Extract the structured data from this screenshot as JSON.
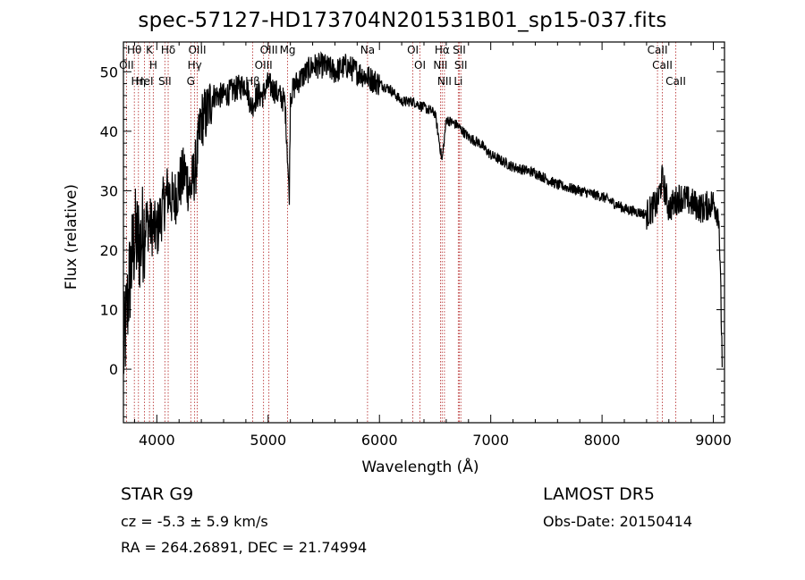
{
  "chart_data": {
    "type": "line",
    "title": "spec-57127-HD173704N201531B01_sp15-037.fits",
    "xlabel": "Wavelength (Å)",
    "ylabel": "Flux (relative)",
    "xlim": [
      3700,
      9100
    ],
    "ylim": [
      -9,
      55
    ],
    "xticks": [
      4000,
      5000,
      6000,
      7000,
      8000,
      9000
    ],
    "yticks": [
      0,
      10,
      20,
      30,
      40,
      50
    ],
    "grid": false,
    "series": [
      {
        "x": [
          3700,
          3750,
          3800,
          3850,
          3900,
          3950,
          4000,
          4050,
          4100,
          4150,
          4200,
          4250,
          4300,
          4350,
          4400,
          4450,
          4500,
          4600,
          4700,
          4800,
          4850,
          4900,
          4950,
          5000,
          5100,
          5150,
          5170,
          5190,
          5200,
          5250,
          5300,
          5400,
          5500,
          5600,
          5700,
          5800,
          5900,
          6000,
          6100,
          6200,
          6300,
          6400,
          6500,
          6563,
          6600,
          6700,
          6800,
          6900,
          7000,
          7200,
          7400,
          7600,
          7800,
          8000,
          8200,
          8400,
          8500,
          8540,
          8600,
          8700,
          8800,
          8900,
          9000,
          9050,
          9080
        ],
        "values": [
          2,
          14,
          22,
          21,
          25,
          24,
          23,
          27,
          30,
          28,
          31,
          33,
          30,
          34,
          42,
          43,
          46,
          46,
          47,
          48,
          44,
          46,
          46,
          48,
          46,
          45,
          38,
          28,
          46,
          48,
          49,
          51,
          51,
          50,
          51,
          50,
          49,
          48,
          47,
          45,
          45,
          44,
          43,
          35,
          42,
          41,
          39,
          38,
          36,
          34,
          33,
          31,
          30,
          29,
          27,
          26,
          28,
          32,
          27,
          29,
          28,
          27,
          28,
          26,
          1
        ]
      }
    ],
    "lines": [
      {
        "label": "Hθ",
        "x": 3798
      },
      {
        "label": "OII",
        "x": 3727
      },
      {
        "label": "Hη",
        "x": 3835
      },
      {
        "label": "K",
        "x": 3934
      },
      {
        "label": "H",
        "x": 3968
      },
      {
        "label": "HeI",
        "x": 3889
      },
      {
        "label": "Hδ",
        "x": 4102
      },
      {
        "label": "SII",
        "x": 4072
      },
      {
        "label": "OIII",
        "x": 4363
      },
      {
        "label": "Hγ",
        "x": 4340
      },
      {
        "label": "G",
        "x": 4305
      },
      {
        "label": "OIII",
        "x": 5007
      },
      {
        "label": "OIII",
        "x": 4959
      },
      {
        "label": "Hβ",
        "x": 4861
      },
      {
        "label": "Mg",
        "x": 5175
      },
      {
        "label": "Na",
        "x": 5893
      },
      {
        "label": "OI",
        "x": 6300
      },
      {
        "label": "OI",
        "x": 6364
      },
      {
        "label": "Hα",
        "x": 6563
      },
      {
        "label": "NII",
        "x": 6548
      },
      {
        "label": "NII",
        "x": 6584
      },
      {
        "label": "SII",
        "x": 6717
      },
      {
        "label": "SII",
        "x": 6731
      },
      {
        "label": "Li",
        "x": 6708
      },
      {
        "label": "CaII",
        "x": 8498
      },
      {
        "label": "CaII",
        "x": 8542
      },
      {
        "label": "CaII",
        "x": 8662
      }
    ]
  },
  "info": {
    "class_line": "STAR     G9",
    "survey": "LAMOST DR5",
    "cz": "cz = -5.3 ± 5.9 km/s",
    "obs_date": "Obs-Date: 20150414",
    "coords": "RA = 264.26891, DEC =  21.74994"
  },
  "colors": {
    "spectrum": "#000000",
    "line_marker": "#b22222"
  }
}
